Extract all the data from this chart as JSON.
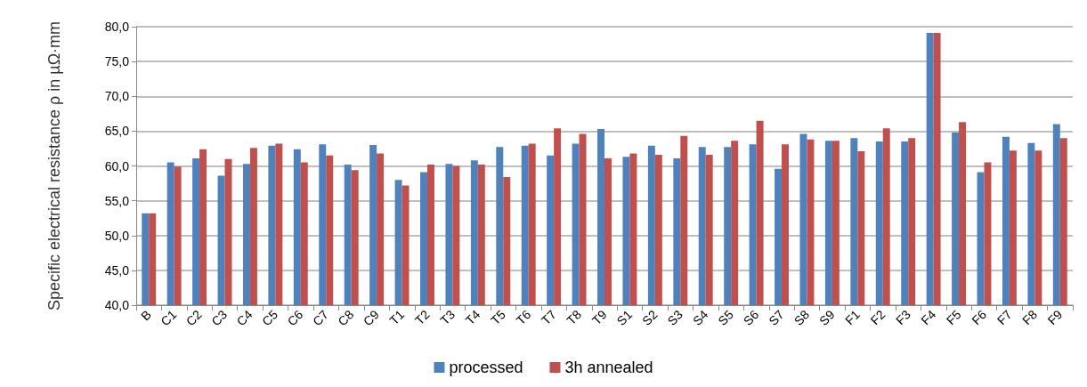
{
  "chart_data": {
    "type": "bar",
    "ylabel": "Specific electrical resistance ρ in µΩ·mm",
    "categories": [
      "B",
      "C1",
      "C2",
      "C3",
      "C4",
      "C5",
      "C6",
      "C7",
      "C8",
      "C9",
      "T1",
      "T2",
      "T3",
      "T4",
      "T5",
      "T6",
      "T7",
      "T8",
      "T9",
      "S1",
      "S2",
      "S3",
      "S4",
      "S5",
      "S6",
      "S7",
      "S8",
      "S9",
      "F1",
      "F2",
      "F3",
      "F4",
      "F5",
      "F6",
      "F7",
      "F8",
      "F9"
    ],
    "series": [
      {
        "name": "processed",
        "color": "#4f81bd",
        "values": [
          53.2,
          60.5,
          61.1,
          58.6,
          60.3,
          62.9,
          62.4,
          63.1,
          60.2,
          63.0,
          58.0,
          59.1,
          60.3,
          60.8,
          62.7,
          62.9,
          61.5,
          63.2,
          65.3,
          61.3,
          62.9,
          61.1,
          62.7,
          62.7,
          63.1,
          59.6,
          64.6,
          63.6,
          64.0,
          63.5,
          63.5,
          79.1,
          64.8,
          59.1,
          64.2,
          63.3,
          66.0
        ]
      },
      {
        "name": "3h annealed",
        "color": "#c0504d",
        "values": [
          53.2,
          59.9,
          62.4,
          61.0,
          62.6,
          63.2,
          60.5,
          61.5,
          59.4,
          61.8,
          57.2,
          60.2,
          60.0,
          60.2,
          58.4,
          63.2,
          65.4,
          64.6,
          61.1,
          61.8,
          61.6,
          64.3,
          61.6,
          63.6,
          66.5,
          63.1,
          63.8,
          63.6,
          62.1,
          65.4,
          64.0,
          79.1,
          66.3,
          60.5,
          62.2,
          62.2,
          64.0
        ]
      }
    ],
    "ylim": [
      40,
      80
    ],
    "yticks": [
      {
        "value": 40,
        "label": "40,0"
      },
      {
        "value": 45,
        "label": "45,0"
      },
      {
        "value": 50,
        "label": "50,0"
      },
      {
        "value": 55,
        "label": "55,0"
      },
      {
        "value": 60,
        "label": "60,0"
      },
      {
        "value": 65,
        "label": "65,0"
      },
      {
        "value": 70,
        "label": "70,0"
      },
      {
        "value": 75,
        "label": "75,0"
      },
      {
        "value": 80,
        "label": "80,0"
      }
    ],
    "grid": "y",
    "legend": "bottom"
  }
}
